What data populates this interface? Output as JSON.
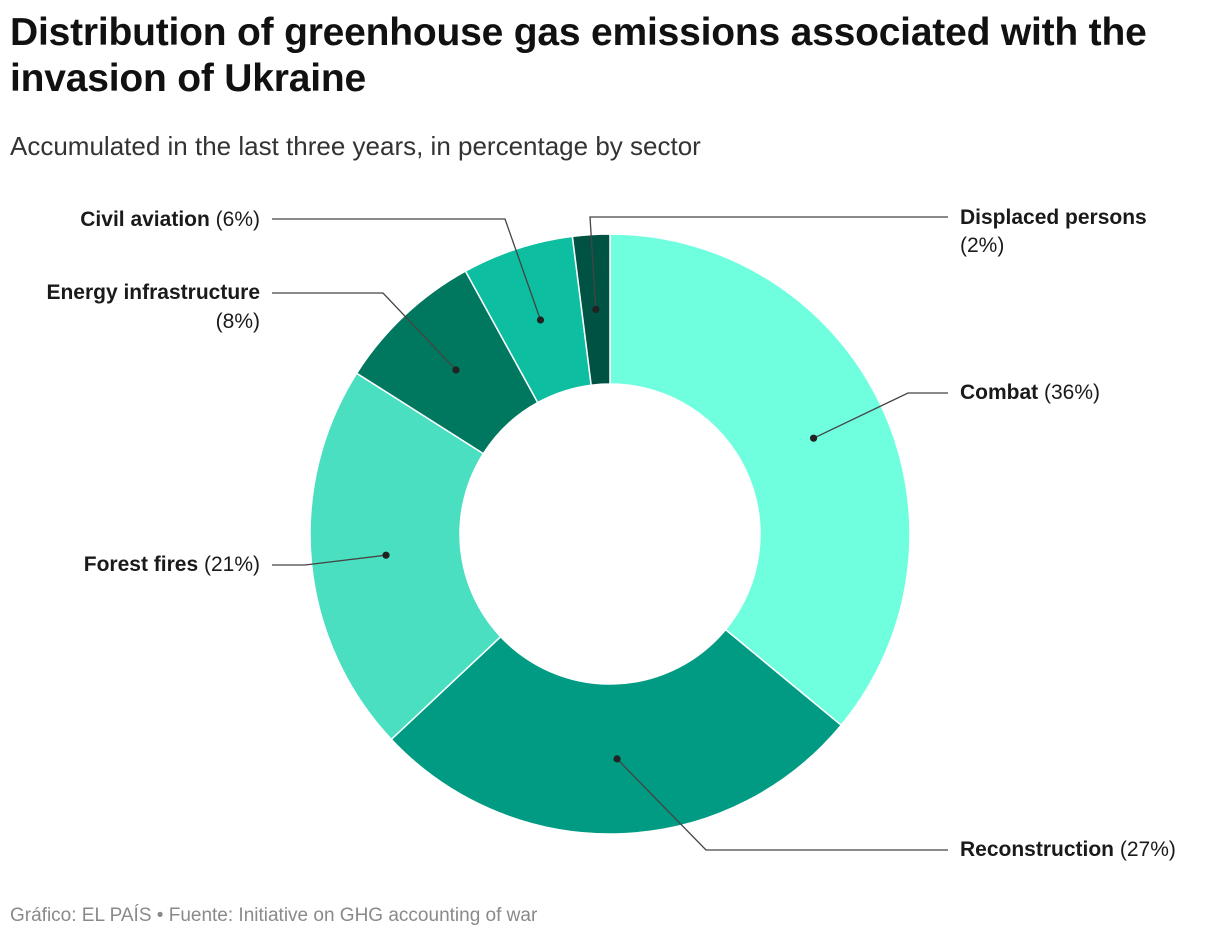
{
  "title": "Distribution of greenhouse gas emissions associated with the invasion of Ukraine",
  "subtitle": "Accumulated in the last three years, in percentage by sector",
  "source": "Gráfico: EL PAÍS • Fuente: Initiative on GHG accounting of war",
  "chart_data": {
    "type": "pie",
    "variant": "donut",
    "start": "top, clockwise",
    "slices": [
      {
        "label": "Combat",
        "value": 36,
        "display": "(36%)",
        "color": "#6fffdf"
      },
      {
        "label": "Reconstruction",
        "value": 27,
        "display": "(27%)",
        "color": "#009b82"
      },
      {
        "label": "Forest fires",
        "value": 21,
        "display": "(21%)",
        "color": "#4adfc1"
      },
      {
        "label": "Energy infrastructure",
        "value": 8,
        "display": "(8%)",
        "color": "#00775f"
      },
      {
        "label": "Civil aviation",
        "value": 6,
        "display": "(6%)",
        "color": "#0dbea0"
      },
      {
        "label": "Displaced persons",
        "value": 2,
        "display": "(2%)",
        "color": "#005242"
      }
    ]
  }
}
